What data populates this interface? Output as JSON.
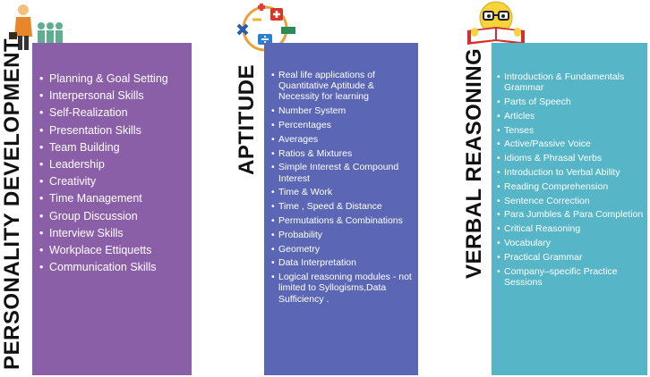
{
  "columns": [
    {
      "title": "PERSONALITY DEVELOPMENT",
      "items": [
        "Planning & Goal Setting",
        "Interpersonal Skills",
        "Self-Realization",
        "Presentation Skills",
        "Team Building",
        "Leadership",
        "Creativity",
        "Time Management",
        "Group Discussion",
        "Interview Skills",
        "Workplace Ettiquetts",
        "Communication Skills"
      ]
    },
    {
      "title": "APTITUDE",
      "items": [
        "Real life applications of Quantitative Aptitude & Necessity for learning",
        "Number System",
        "Percentages",
        "Averages",
        "Ratios & Mixtures",
        "Simple Interest  & Compound Interest",
        "Time & Work",
        "Time , Speed & Distance",
        "Permutations & Combinations",
        "Probability",
        "Geometry",
        "Data Interpretation",
        "Logical reasoning modules - not limited to Syllogisms,Data Sufficiency ."
      ]
    },
    {
      "title": "VERBAL REASONING",
      "items": [
        "Introduction & Fundamentals Grammar",
        "Parts of Speech",
        "Articles",
        "Tenses",
        "Active/Passive Voice",
        "Idioms & Phrasal Verbs",
        "Introduction to Verbal Ability",
        "Reading Comprehension",
        "Sentence Correction",
        "Para Jumbles & Para Completion",
        "Critical Reasoning",
        "Vocabulary",
        "Practical Grammar",
        "Company–specific Practice Sessions"
      ]
    }
  ],
  "colors": {
    "personality_panel": "#8b5fa8",
    "aptitude_panel": "#5b67b4",
    "verbal_panel": "#56b6c8"
  },
  "icons": [
    "business-team-icon",
    "math-symbols-icon",
    "smiley-reading-book-icon"
  ]
}
